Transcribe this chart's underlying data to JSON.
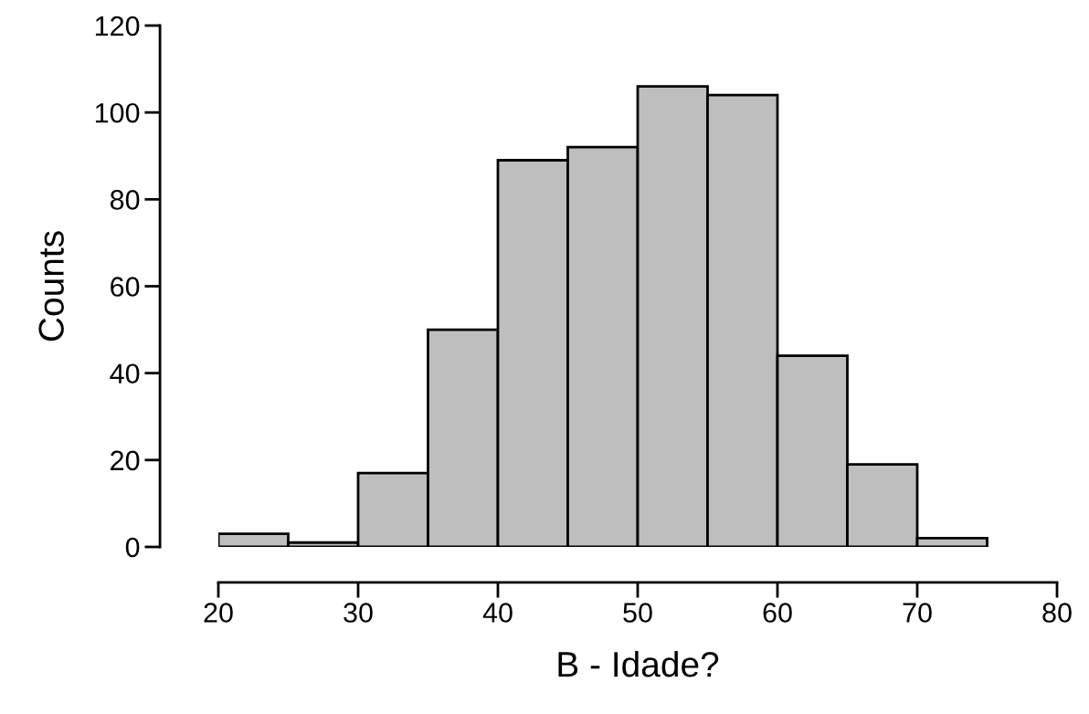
{
  "chart_data": {
    "type": "histogram",
    "xlabel": "B - Idade?",
    "ylabel": "Counts",
    "bins": [
      20,
      25,
      30,
      35,
      40,
      45,
      50,
      55,
      60,
      65,
      70,
      75
    ],
    "values": [
      3,
      1,
      17,
      50,
      89,
      92,
      106,
      104,
      44,
      19,
      2
    ],
    "color": "#bebebe",
    "xlim": [
      20,
      80
    ],
    "xticks": [
      20,
      30,
      40,
      50,
      60,
      70,
      80
    ],
    "ylim": [
      0,
      120
    ],
    "yticks": [
      0,
      20,
      40,
      60,
      80,
      100,
      120
    ],
    "grid": false
  }
}
